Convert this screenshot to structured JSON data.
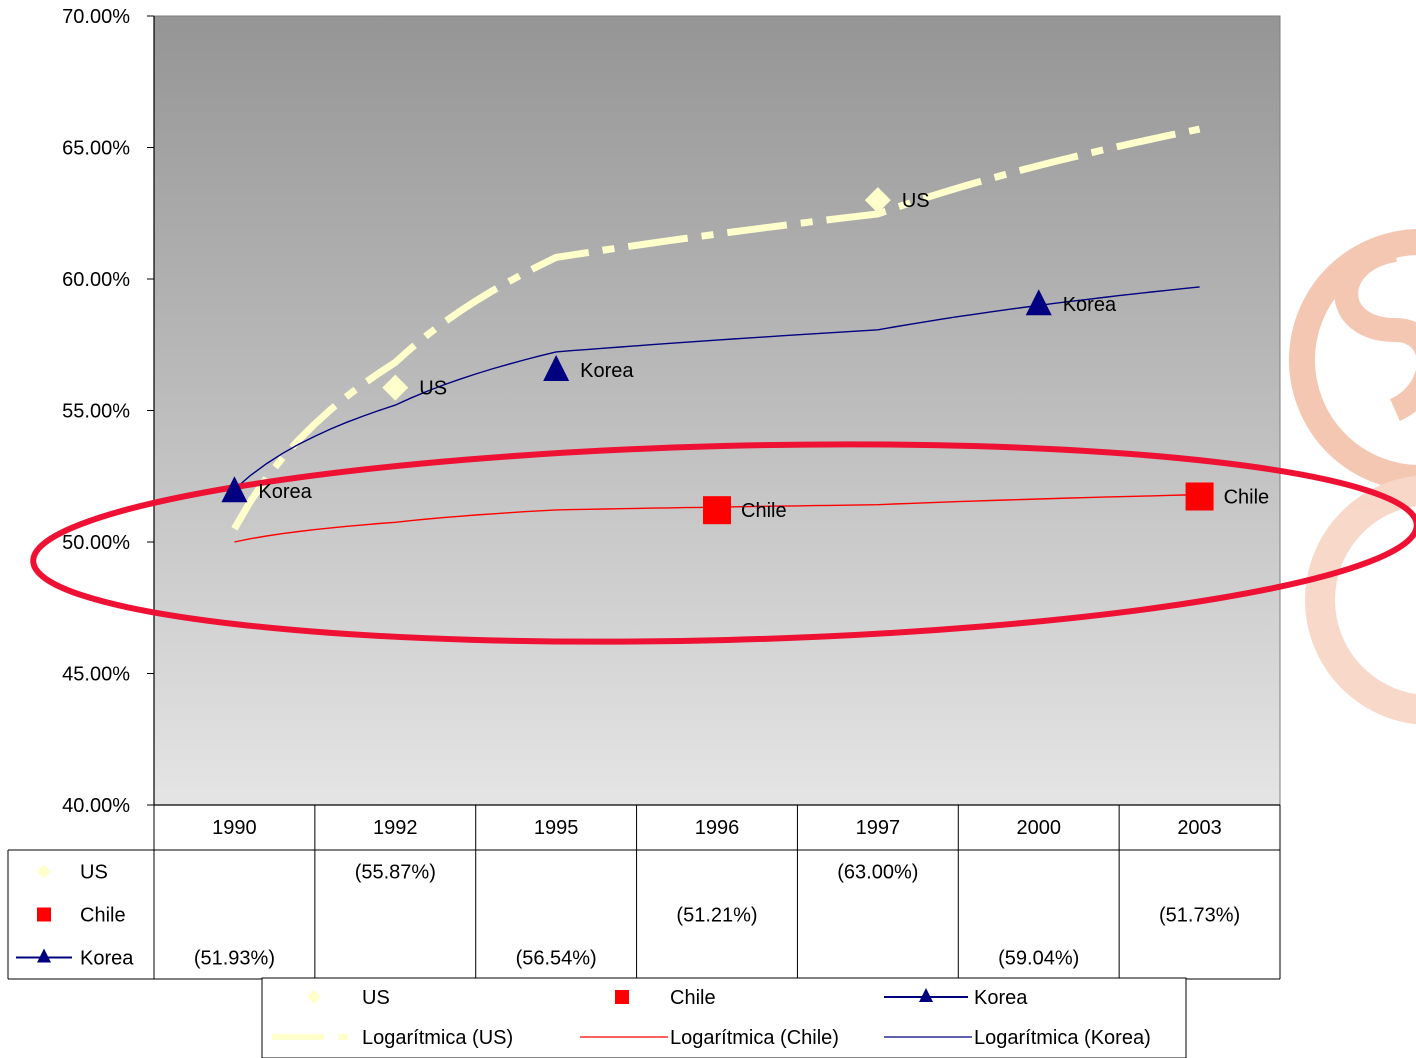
{
  "chart_data": {
    "type": "line",
    "title": "",
    "xlabel": "",
    "ylabel": "",
    "ylim": [
      0.4,
      0.7
    ],
    "y_ticks": [
      "40.00%",
      "45.00%",
      "50.00%",
      "55.00%",
      "60.00%",
      "65.00%",
      "70.00%"
    ],
    "y_tick_values": [
      0.4,
      0.45,
      0.5,
      0.55,
      0.6,
      0.65,
      0.7
    ],
    "categories": [
      "1990",
      "1992",
      "1995",
      "1996",
      "1997",
      "2000",
      "2003"
    ],
    "plot_background": "gradient dark gray (top) to light gray (bottom)",
    "series": [
      {
        "name": "US",
        "marker": "diamond",
        "color": "#FFFFCC",
        "points": [
          {
            "category": "1992",
            "value": 0.5587,
            "label": "US",
            "table_label": "(55.87%)"
          },
          {
            "category": "1997",
            "value": 0.63,
            "label": "US",
            "table_label": "(63.00%)"
          }
        ]
      },
      {
        "name": "Chile",
        "marker": "square",
        "color": "#FF0000",
        "points": [
          {
            "category": "1996",
            "value": 0.5121,
            "label": "Chile",
            "table_label": "(51.21%)"
          },
          {
            "category": "2003",
            "value": 0.5173,
            "label": "Chile",
            "table_label": "(51.73%)"
          }
        ]
      },
      {
        "name": "Korea",
        "marker": "triangle",
        "color": "#000080",
        "points": [
          {
            "category": "1990",
            "value": 0.5193,
            "label": "Korea",
            "table_label": "(51.93%)"
          },
          {
            "category": "1995",
            "value": 0.5654,
            "label": "Korea",
            "table_label": "(56.54%)"
          },
          {
            "category": "2000",
            "value": 0.5904,
            "label": "Korea",
            "table_label": "(59.04%)"
          }
        ]
      }
    ],
    "trendlines": [
      {
        "name": "Logarítmica (US)",
        "style": "dashed-thick",
        "color": "#FFFFCC",
        "from": {
          "category": "1990",
          "value": 0.505
        },
        "to": {
          "category": "2003",
          "value": 0.657
        }
      },
      {
        "name": "Logarítmica (Chile)",
        "style": "solid-thin",
        "color": "#FF0000",
        "from": {
          "category": "1990",
          "value": 0.5
        },
        "to": {
          "category": "2003",
          "value": 0.518
        }
      },
      {
        "name": "Logarítmica (Korea)",
        "style": "solid-thin",
        "color": "#000080",
        "from": {
          "category": "1990",
          "value": 0.52
        },
        "to": {
          "category": "2003",
          "value": 0.597
        }
      }
    ],
    "highlight": {
      "shape": "ellipse",
      "color": "#EE1133",
      "around_series": "Chile"
    },
    "legend": {
      "placement": "bottom",
      "entries": [
        "US",
        "Chile",
        "Korea",
        "Logarítmica (US)",
        "Logarítmica (Chile)",
        "Logarítmica (Korea)"
      ]
    },
    "watermark": {
      "type": "logo",
      "color": "#E8825A",
      "placement": "right"
    }
  }
}
